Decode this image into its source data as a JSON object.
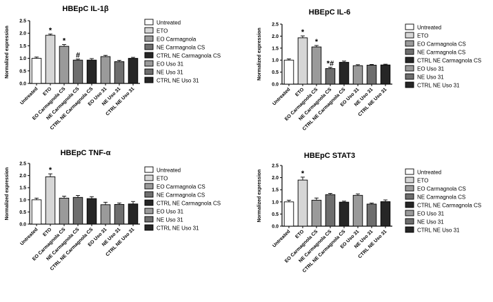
{
  "palette": {
    "Untreated": "#ffffff",
    "ETO": "#d6d6d6",
    "EO": "#9a9a9a",
    "NE": "#6e6e6e",
    "CTRL": "#262626",
    "stroke": "#000000"
  },
  "chart_data": [
    {
      "type": "bar",
      "title": "HBEpC   IL-1β",
      "ylabel": "Normalized expression",
      "ylim": [
        0,
        2.5
      ],
      "yticks": [
        "0.0",
        "0.5",
        "1.0",
        "1.5",
        "2.0",
        "2.5"
      ],
      "categories": [
        "Untreated",
        "ETO",
        "EO Carmagnola CS",
        "NE Carmagnola CS",
        "CTRL NE Carmagnola CS",
        "EO Uso 31",
        "NE Uso 31",
        "CTRL NE Uso 31"
      ],
      "values": [
        1.0,
        1.92,
        1.48,
        0.93,
        0.93,
        1.07,
        0.87,
        1.0
      ],
      "errors": [
        0.05,
        0.05,
        0.07,
        0.04,
        0.06,
        0.05,
        0.05,
        0.04
      ],
      "fill_keys": [
        "Untreated",
        "ETO",
        "EO",
        "NE",
        "CTRL",
        "EO",
        "NE",
        "CTRL"
      ],
      "annotations": [
        "",
        "*",
        "*",
        "#",
        "",
        "",
        "",
        ""
      ],
      "legend": [
        "Untreated",
        "ETO",
        "EO Carmagnola",
        "NE Carmagnola CS",
        "CTRL NE Carmagnola CS",
        "EO Uso 31",
        "NE Uso 31",
        "CTRL NE Uso 31"
      ],
      "legend_placement": "right"
    },
    {
      "type": "bar",
      "title": "HBEpC IL-6",
      "ylabel": "Normalized expression",
      "ylim": [
        0,
        2.5
      ],
      "yticks": [
        "0.0",
        "0.5",
        "1.0",
        "1.5",
        "2.0",
        "2.5"
      ],
      "categories": [
        "Untreated",
        "ETO",
        "EO Carmagnola CS",
        "NE Carmagnola CS",
        "CTRL NE Carmagnola CS",
        "EO Uso 31",
        "NE Uso 31",
        "CTRL NE Uso 31"
      ],
      "values": [
        1.0,
        1.93,
        1.55,
        0.65,
        0.91,
        0.77,
        0.79,
        0.8
      ],
      "errors": [
        0.05,
        0.08,
        0.06,
        0.05,
        0.05,
        0.04,
        0.03,
        0.03
      ],
      "fill_keys": [
        "Untreated",
        "ETO",
        "EO",
        "NE",
        "CTRL",
        "EO",
        "NE",
        "CTRL"
      ],
      "annotations": [
        "",
        "*",
        "*",
        "*#",
        "",
        "",
        "",
        ""
      ],
      "legend": [
        "Untreated",
        "ETO",
        "EO Carmagnola CS",
        "NE Carmagnola CS",
        "CTRL NE Carmagnola CS",
        "EO Uso 31",
        "NE Uso 31",
        "CTRL NE Uso 31"
      ],
      "legend_placement": "right"
    },
    {
      "type": "bar",
      "title": "HBEpC   TNF-α",
      "ylabel": "Normalized expression",
      "ylim": [
        0,
        2.5
      ],
      "yticks": [
        "0.0",
        "0.5",
        "1.0",
        "1.5",
        "2.0",
        "2.5"
      ],
      "categories": [
        "Untreated",
        "ETO",
        "EO Carmagnola CS",
        "NE Carmagnola CS",
        "CTRL NE Carmagnola CS",
        "EO Uso 31",
        "NE Uso 31",
        "CTRL NE Uso 31"
      ],
      "values": [
        1.0,
        1.95,
        1.07,
        1.1,
        1.05,
        0.8,
        0.81,
        0.83
      ],
      "errors": [
        0.07,
        0.12,
        0.08,
        0.08,
        0.08,
        0.1,
        0.06,
        0.1
      ],
      "fill_keys": [
        "Untreated",
        "ETO",
        "EO",
        "NE",
        "CTRL",
        "EO",
        "NE",
        "CTRL"
      ],
      "annotations": [
        "",
        "*",
        "",
        "",
        "",
        "",
        "",
        ""
      ],
      "legend": [
        "Untreated",
        "ETO",
        "EO Carmagnola CS",
        "NE Carmagnola CS",
        "CTRL NE Carmagnola CS",
        "EO Uso 31",
        "NE Uso 31",
        "CTRL NE Uso 31"
      ],
      "legend_placement": "right"
    },
    {
      "type": "bar",
      "title": "HBEpC STAT3",
      "ylabel": "Normalized expression",
      "ylim": [
        0,
        2.5
      ],
      "yticks": [
        "0.0",
        "0.5",
        "1.0",
        "1.5",
        "2.0",
        "2.5"
      ],
      "categories": [
        "Untreated",
        "ETO",
        "EO Carmagnola CS",
        "NE Carmagnola CS",
        "CTRL NE Carmagnola CS",
        "EO Uso 31",
        "NE Uso 31",
        "CTRL NE Uso 31"
      ],
      "values": [
        1.0,
        1.9,
        1.07,
        1.3,
        0.99,
        1.27,
        0.91,
        1.01
      ],
      "errors": [
        0.07,
        0.12,
        0.09,
        0.05,
        0.04,
        0.06,
        0.04,
        0.07
      ],
      "fill_keys": [
        "Untreated",
        "ETO",
        "EO",
        "NE",
        "CTRL",
        "EO",
        "NE",
        "CTRL"
      ],
      "annotations": [
        "",
        "*",
        "",
        "",
        "",
        "",
        "",
        ""
      ],
      "legend": [
        "Untreated",
        "ETO",
        "EO Carmagnola CS",
        "NE Carmagnola CS",
        "CTRL NE Carmagnola CS",
        "EO Uso 31",
        "NE Uso 31",
        "CTRL NE Uso 31"
      ],
      "legend_placement": "right"
    }
  ]
}
